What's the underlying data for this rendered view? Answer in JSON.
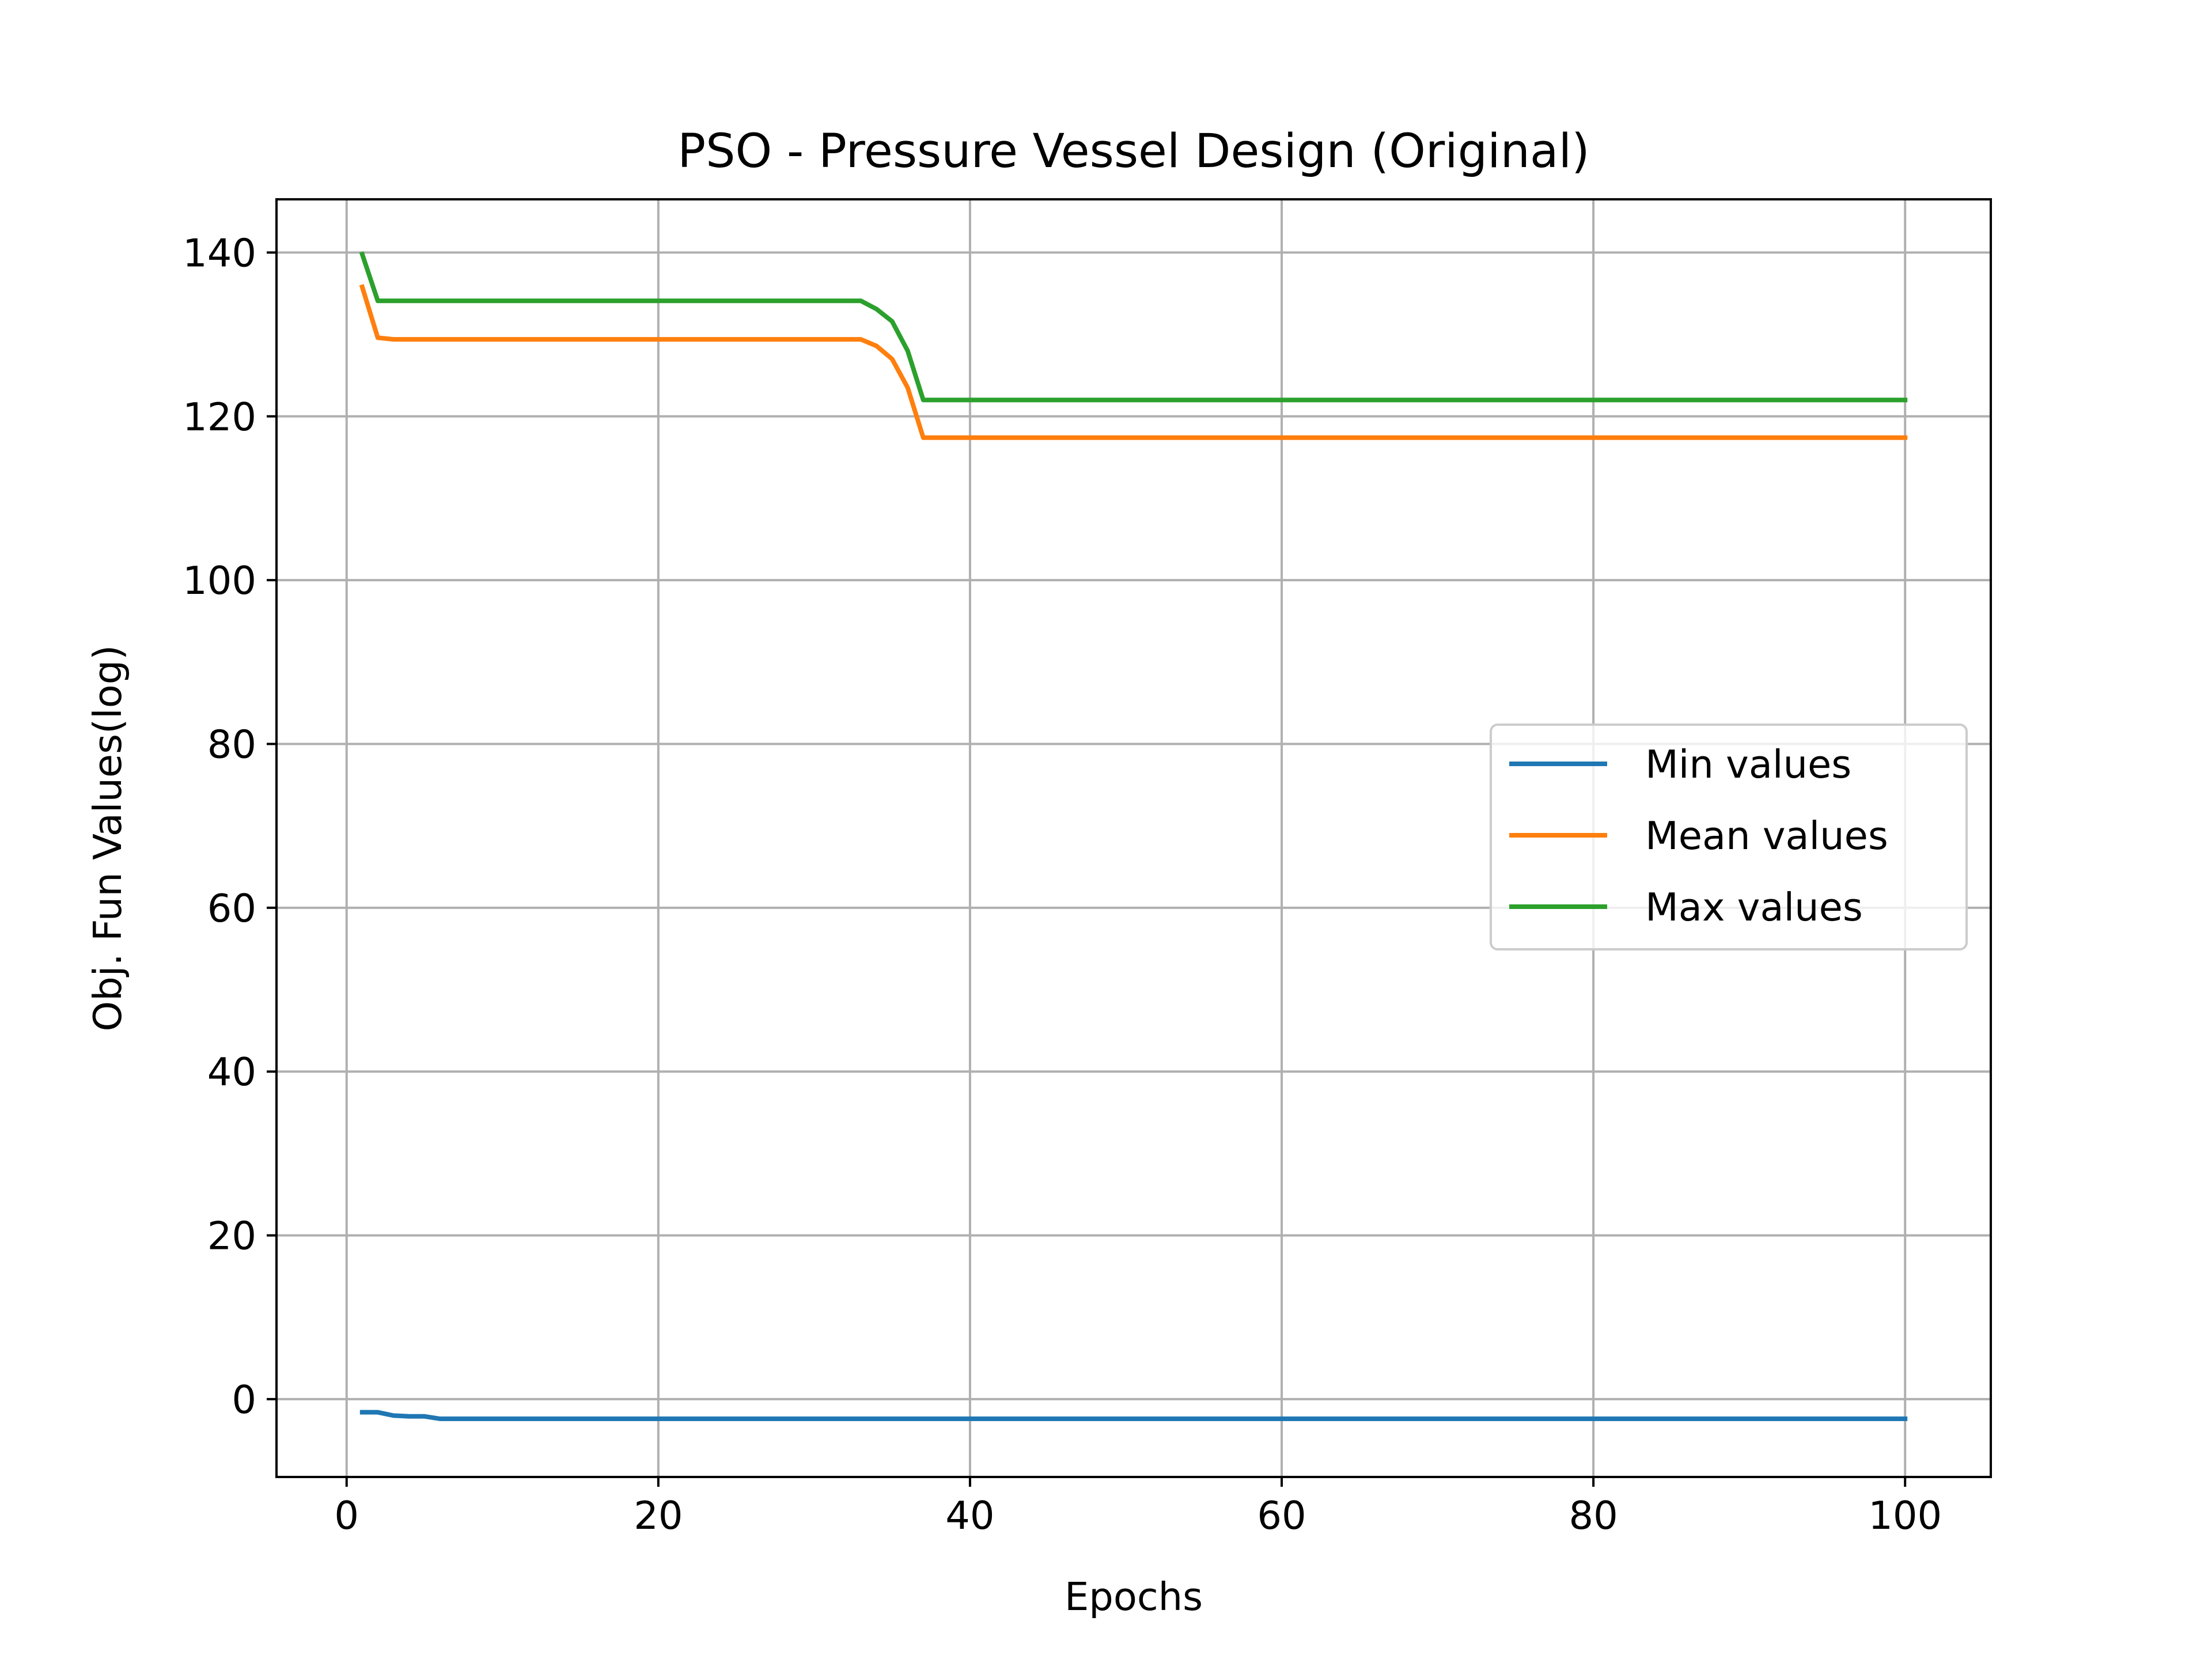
{
  "chart_data": {
    "type": "line",
    "title": "PSO - Pressure Vessel Design (Original)",
    "xlabel": "Epochs",
    "ylabel": "Obj. Fun Values(log)",
    "xlim": [
      -4.5,
      105.5
    ],
    "ylim": [
      -9.5,
      146.5
    ],
    "xticks": [
      0,
      20,
      40,
      60,
      80,
      100
    ],
    "yticks": [
      0,
      20,
      40,
      60,
      80,
      100,
      120,
      140
    ],
    "grid": true,
    "legend_position": "center-right",
    "x": [
      1,
      2,
      3,
      4,
      5,
      6,
      7,
      8,
      9,
      10,
      11,
      12,
      13,
      14,
      15,
      16,
      17,
      18,
      19,
      20,
      21,
      22,
      23,
      24,
      25,
      26,
      27,
      28,
      29,
      30,
      31,
      32,
      33,
      34,
      35,
      36,
      37,
      38,
      39,
      40,
      41,
      42,
      43,
      44,
      45,
      46,
      47,
      48,
      49,
      50,
      51,
      52,
      53,
      54,
      55,
      56,
      57,
      58,
      59,
      60,
      61,
      62,
      63,
      64,
      65,
      66,
      67,
      68,
      69,
      70,
      71,
      72,
      73,
      74,
      75,
      76,
      77,
      78,
      79,
      80,
      81,
      82,
      83,
      84,
      85,
      86,
      87,
      88,
      89,
      90,
      91,
      92,
      93,
      94,
      95,
      96,
      97,
      98,
      99,
      100
    ],
    "series": [
      {
        "name": "Min values",
        "color": "#1f77b4",
        "values": [
          -1.6,
          -1.6,
          -2.0,
          -2.1,
          -2.1,
          -2.4,
          -2.4,
          -2.4,
          -2.4,
          -2.4,
          -2.4,
          -2.4,
          -2.4,
          -2.4,
          -2.4,
          -2.4,
          -2.4,
          -2.4,
          -2.4,
          -2.4,
          -2.4,
          -2.4,
          -2.4,
          -2.4,
          -2.4,
          -2.4,
          -2.4,
          -2.4,
          -2.4,
          -2.4,
          -2.4,
          -2.4,
          -2.4,
          -2.4,
          -2.4,
          -2.4,
          -2.4,
          -2.4,
          -2.4,
          -2.4,
          -2.4,
          -2.4,
          -2.4,
          -2.4,
          -2.4,
          -2.4,
          -2.4,
          -2.4,
          -2.4,
          -2.4,
          -2.4,
          -2.4,
          -2.4,
          -2.4,
          -2.4,
          -2.4,
          -2.4,
          -2.4,
          -2.4,
          -2.4,
          -2.4,
          -2.4,
          -2.4,
          -2.4,
          -2.4,
          -2.4,
          -2.4,
          -2.4,
          -2.4,
          -2.4,
          -2.4,
          -2.4,
          -2.4,
          -2.4,
          -2.4,
          -2.4,
          -2.4,
          -2.4,
          -2.4,
          -2.4,
          -2.4,
          -2.4,
          -2.4,
          -2.4,
          -2.4,
          -2.4,
          -2.4,
          -2.4,
          -2.4,
          -2.4,
          -2.4,
          -2.4,
          -2.4,
          -2.4,
          -2.4,
          -2.4,
          -2.4,
          -2.4,
          -2.4,
          -2.4
        ]
      },
      {
        "name": "Mean values",
        "color": "#ff7f0e",
        "values": [
          135.8,
          129.6,
          129.4,
          129.4,
          129.4,
          129.4,
          129.4,
          129.4,
          129.4,
          129.4,
          129.4,
          129.4,
          129.4,
          129.4,
          129.4,
          129.4,
          129.4,
          129.4,
          129.4,
          129.4,
          129.4,
          129.4,
          129.4,
          129.4,
          129.4,
          129.4,
          129.4,
          129.4,
          129.4,
          129.4,
          129.4,
          129.4,
          129.4,
          128.6,
          127.0,
          123.5,
          117.4,
          117.4,
          117.4,
          117.4,
          117.4,
          117.4,
          117.4,
          117.4,
          117.4,
          117.4,
          117.4,
          117.4,
          117.4,
          117.4,
          117.4,
          117.4,
          117.4,
          117.4,
          117.4,
          117.4,
          117.4,
          117.4,
          117.4,
          117.4,
          117.4,
          117.4,
          117.4,
          117.4,
          117.4,
          117.4,
          117.4,
          117.4,
          117.4,
          117.4,
          117.4,
          117.4,
          117.4,
          117.4,
          117.4,
          117.4,
          117.4,
          117.4,
          117.4,
          117.4,
          117.4,
          117.4,
          117.4,
          117.4,
          117.4,
          117.4,
          117.4,
          117.4,
          117.4,
          117.4,
          117.4,
          117.4,
          117.4,
          117.4,
          117.4,
          117.4,
          117.4,
          117.4,
          117.4,
          117.4
        ]
      },
      {
        "name": "Max values",
        "color": "#2ca02c",
        "values": [
          139.8,
          134.1,
          134.1,
          134.1,
          134.1,
          134.1,
          134.1,
          134.1,
          134.1,
          134.1,
          134.1,
          134.1,
          134.1,
          134.1,
          134.1,
          134.1,
          134.1,
          134.1,
          134.1,
          134.1,
          134.1,
          134.1,
          134.1,
          134.1,
          134.1,
          134.1,
          134.1,
          134.1,
          134.1,
          134.1,
          134.1,
          134.1,
          134.1,
          133.1,
          131.6,
          128.0,
          122.0,
          122.0,
          122.0,
          122.0,
          122.0,
          122.0,
          122.0,
          122.0,
          122.0,
          122.0,
          122.0,
          122.0,
          122.0,
          122.0,
          122.0,
          122.0,
          122.0,
          122.0,
          122.0,
          122.0,
          122.0,
          122.0,
          122.0,
          122.0,
          122.0,
          122.0,
          122.0,
          122.0,
          122.0,
          122.0,
          122.0,
          122.0,
          122.0,
          122.0,
          122.0,
          122.0,
          122.0,
          122.0,
          122.0,
          122.0,
          122.0,
          122.0,
          122.0,
          122.0,
          122.0,
          122.0,
          122.0,
          122.0,
          122.0,
          122.0,
          122.0,
          122.0,
          122.0,
          122.0,
          122.0,
          122.0,
          122.0,
          122.0,
          122.0,
          122.0,
          122.0,
          122.0,
          122.0,
          122.0
        ]
      }
    ]
  }
}
